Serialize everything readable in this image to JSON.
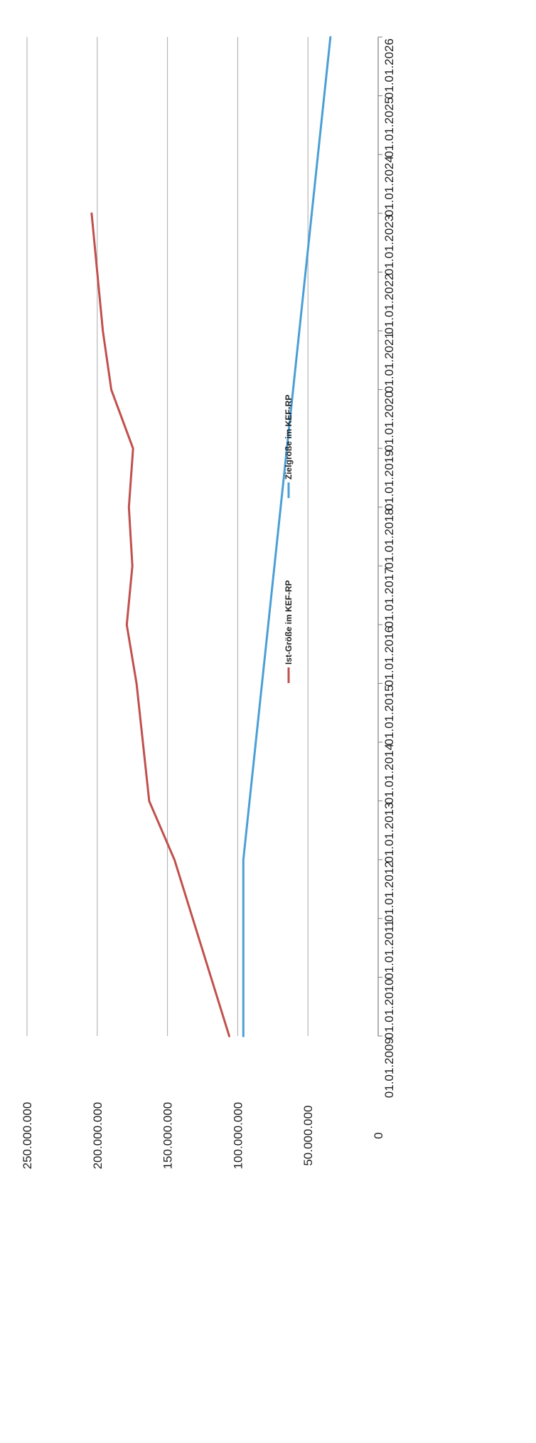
{
  "chart_data": {
    "type": "line",
    "title": "",
    "xlabel": "",
    "ylabel": "",
    "ylim": [
      0,
      250000000
    ],
    "grid": true,
    "legend_position": "top",
    "x_ticks": [
      "01.01.2009",
      "01.01.2010",
      "01.01.2011",
      "01.01.2012",
      "01.01.2013",
      "01.01.2014",
      "01.01.2015",
      "01.01.2016",
      "01.01.2017",
      "01.01.2018",
      "01.01.2019",
      "01.01.2020",
      "01.01.2021",
      "01.01.2022",
      "01.01.2023",
      "01.01.2024",
      "01.01.2025",
      "01.01.2026"
    ],
    "y_ticks": [
      {
        "value": 0,
        "label": "0"
      },
      {
        "value": 50000000,
        "label": "50.000.000"
      },
      {
        "value": 100000000,
        "label": "100.000.000"
      },
      {
        "value": 150000000,
        "label": "150.000.000"
      },
      {
        "value": 200000000,
        "label": "200.000.000"
      },
      {
        "value": 250000000,
        "label": "250.000.000"
      }
    ],
    "series": [
      {
        "name": "Ist-Größe im KEF-RP",
        "color": "#c0504d",
        "points": [
          {
            "x": "2008-12-31",
            "y": 106000000
          },
          {
            "x": "2011-12-31",
            "y": 145000000
          },
          {
            "x": "2012-12-31",
            "y": 163000000
          },
          {
            "x": "2014-12-31",
            "y": 172000000
          },
          {
            "x": "2015-12-31",
            "y": 179000000
          },
          {
            "x": "2016-12-31",
            "y": 175000000
          },
          {
            "x": "2017-12-31",
            "y": 177500000
          },
          {
            "x": "2018-12-31",
            "y": 174500000
          },
          {
            "x": "2019-12-31",
            "y": 190000000
          },
          {
            "x": "2020-12-31",
            "y": 196000000
          },
          {
            "x": "2022-12-31",
            "y": 204000000
          }
        ]
      },
      {
        "name": "Zielgröße im KEF-RP",
        "color": "#4a9fd6",
        "points": [
          {
            "x": "2008-12-31",
            "y": 96000000
          },
          {
            "x": "2011-12-31",
            "y": 96000000
          },
          {
            "x": "2025-12-31",
            "y": 34000000
          }
        ]
      }
    ]
  }
}
